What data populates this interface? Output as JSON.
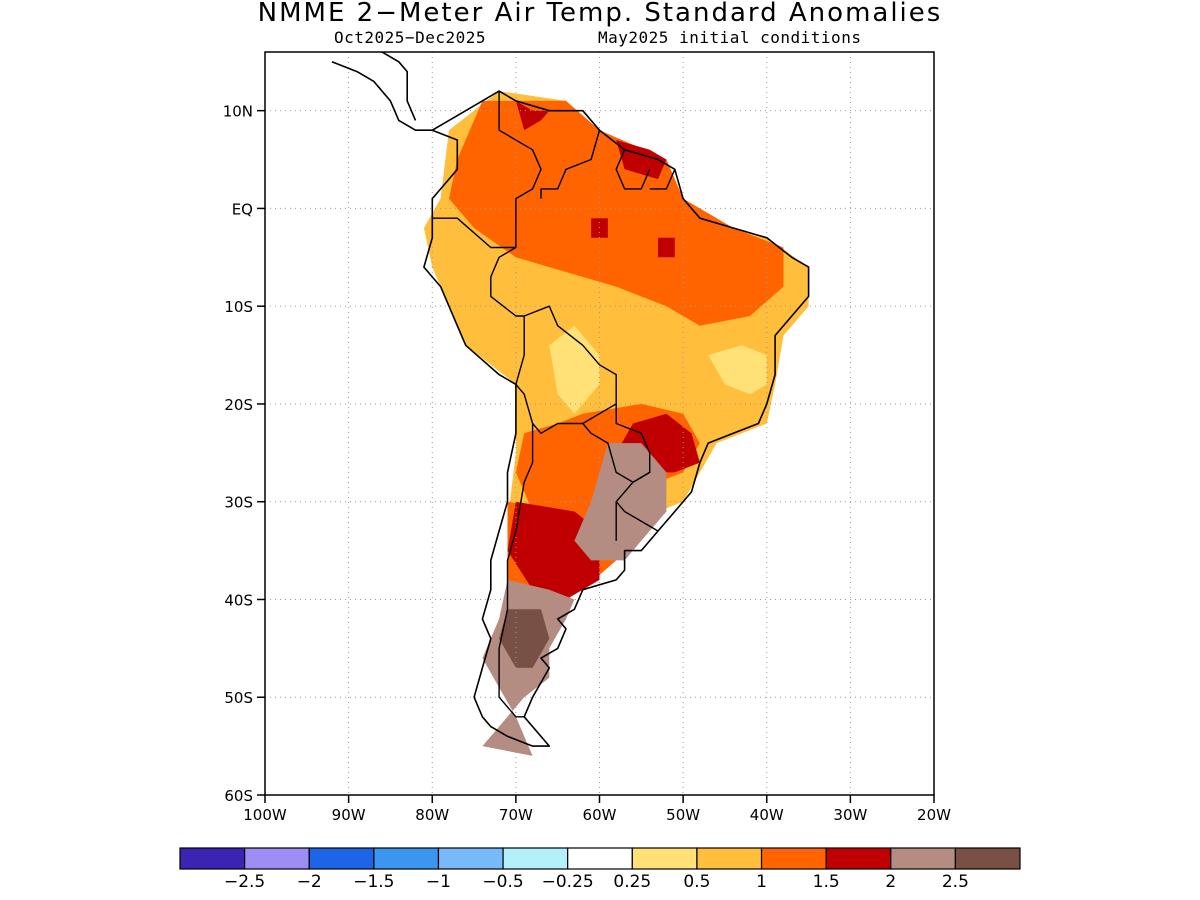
{
  "title": "NMME 2−Meter Air Temp. Standard Anomalies",
  "subtitle_left": "Oct2025−Dec2025",
  "subtitle_right": "May2025 initial conditions",
  "lat_ticks": [
    {
      "value": 10,
      "label": "10N"
    },
    {
      "value": 0,
      "label": "EQ"
    },
    {
      "value": -10,
      "label": "10S"
    },
    {
      "value": -20,
      "label": "20S"
    },
    {
      "value": -30,
      "label": "30S"
    },
    {
      "value": -40,
      "label": "40S"
    },
    {
      "value": -50,
      "label": "50S"
    },
    {
      "value": -60,
      "label": "60S"
    }
  ],
  "lon_ticks": [
    {
      "value": -100,
      "label": "100W"
    },
    {
      "value": -90,
      "label": "90W"
    },
    {
      "value": -80,
      "label": "80W"
    },
    {
      "value": -70,
      "label": "70W"
    },
    {
      "value": -60,
      "label": "60W"
    },
    {
      "value": -50,
      "label": "50W"
    },
    {
      "value": -40,
      "label": "40W"
    },
    {
      "value": -30,
      "label": "30W"
    },
    {
      "value": -20,
      "label": "20W"
    }
  ],
  "map_extent": {
    "lon": [
      -100,
      -20
    ],
    "lat": [
      -60,
      16
    ]
  },
  "colorbar": {
    "colors": [
      "#3b24b4",
      "#9e8df5",
      "#1e64e6",
      "#3c96f0",
      "#78b9fa",
      "#b4f0fa",
      "#ffffff",
      "#ffe178",
      "#ffbe3c",
      "#ff6400",
      "#c00000",
      "#b48c82",
      "#785046"
    ],
    "labels": [
      "−2.5",
      "−2",
      "−1.5",
      "−1",
      "−0.5",
      "−0.25",
      "0.25",
      "0.5",
      "1",
      "1.5",
      "2",
      "2.5"
    ]
  },
  "anomaly_regions": [
    {
      "level": 1,
      "points": [
        [
          -78,
          8
        ],
        [
          -72,
          12
        ],
        [
          -64,
          11
        ],
        [
          -60,
          8
        ],
        [
          -52,
          5
        ],
        [
          -50,
          1
        ],
        [
          -44,
          -2
        ],
        [
          -40,
          -3
        ],
        [
          -35,
          -6
        ],
        [
          -35,
          -10
        ],
        [
          -38,
          -13
        ],
        [
          -39,
          -18
        ],
        [
          -40,
          -22
        ],
        [
          -46,
          -24
        ],
        [
          -48,
          -27
        ],
        [
          -50,
          -30
        ],
        [
          -56,
          -32
        ],
        [
          -60,
          -35
        ],
        [
          -62,
          -38
        ],
        [
          -64,
          -40
        ],
        [
          -66,
          -43
        ],
        [
          -71,
          -43
        ],
        [
          -71,
          -38
        ],
        [
          -71,
          -32
        ],
        [
          -70,
          -25
        ],
        [
          -70,
          -18
        ],
        [
          -76,
          -14
        ],
        [
          -80,
          -6
        ],
        [
          -81,
          -2
        ],
        [
          -79,
          1
        ]
      ]
    },
    {
      "level": 0,
      "points": [
        [
          -66,
          -14
        ],
        [
          -63,
          -12
        ],
        [
          -60,
          -15
        ],
        [
          -60,
          -18
        ],
        [
          -63,
          -21
        ],
        [
          -65,
          -19
        ]
      ]
    },
    {
      "level": 0,
      "points": [
        [
          -47,
          -15
        ],
        [
          -43,
          -14
        ],
        [
          -40,
          -15
        ],
        [
          -40,
          -18
        ],
        [
          -42,
          -19
        ],
        [
          -45,
          -18
        ]
      ]
    },
    {
      "level": 2,
      "points": [
        [
          -77,
          5
        ],
        [
          -74,
          11
        ],
        [
          -64,
          11
        ],
        [
          -60,
          8
        ],
        [
          -52,
          5
        ],
        [
          -50,
          1
        ],
        [
          -44,
          -2
        ],
        [
          -38,
          -4
        ],
        [
          -38,
          -8
        ],
        [
          -42,
          -11
        ],
        [
          -48,
          -12
        ],
        [
          -52,
          -10
        ],
        [
          -58,
          -8
        ],
        [
          -62,
          -7
        ],
        [
          -66,
          -6
        ],
        [
          -70,
          -5
        ],
        [
          -75,
          -2
        ],
        [
          -78,
          1
        ]
      ]
    },
    {
      "level": 3,
      "points": [
        [
          -70,
          11
        ],
        [
          -68,
          10
        ],
        [
          -66,
          10
        ],
        [
          -67,
          9
        ],
        [
          -69,
          8
        ]
      ]
    },
    {
      "level": 3,
      "points": [
        [
          -58,
          7
        ],
        [
          -54,
          6
        ],
        [
          -52,
          5
        ],
        [
          -53,
          3
        ],
        [
          -57,
          4
        ]
      ]
    },
    {
      "level": 3,
      "points": [
        [
          -61,
          -1
        ],
        [
          -59,
          -1
        ],
        [
          -59,
          -3
        ],
        [
          -61,
          -3
        ]
      ]
    },
    {
      "level": 3,
      "points": [
        [
          -53,
          -3
        ],
        [
          -51,
          -3
        ],
        [
          -51,
          -5
        ],
        [
          -53,
          -5
        ]
      ]
    },
    {
      "level": 2,
      "points": [
        [
          -62,
          -21
        ],
        [
          -55,
          -20
        ],
        [
          -50,
          -21
        ],
        [
          -48,
          -24
        ],
        [
          -50,
          -27
        ],
        [
          -53,
          -28
        ],
        [
          -58,
          -30
        ],
        [
          -63,
          -32
        ],
        [
          -66,
          -33
        ],
        [
          -68,
          -31
        ],
        [
          -70,
          -27
        ],
        [
          -69,
          -23
        ],
        [
          -65,
          -22
        ]
      ]
    },
    {
      "level": 2,
      "points": [
        [
          -71,
          -30
        ],
        [
          -65,
          -31
        ],
        [
          -58,
          -32
        ],
        [
          -58,
          -36
        ],
        [
          -62,
          -39
        ],
        [
          -66,
          -40
        ],
        [
          -71,
          -40
        ]
      ]
    },
    {
      "level": 3,
      "points": [
        [
          -56,
          -22
        ],
        [
          -52,
          -21
        ],
        [
          -49,
          -23
        ],
        [
          -48,
          -26
        ],
        [
          -51,
          -27
        ],
        [
          -55,
          -27
        ],
        [
          -58,
          -25
        ]
      ]
    },
    {
      "level": 3,
      "points": [
        [
          -70,
          -30
        ],
        [
          -63,
          -31
        ],
        [
          -60,
          -33
        ],
        [
          -60,
          -38
        ],
        [
          -64,
          -40
        ],
        [
          -68,
          -39
        ],
        [
          -71,
          -35
        ]
      ]
    },
    {
      "level": 4,
      "points": [
        [
          -59,
          -24
        ],
        [
          -55,
          -24
        ],
        [
          -52,
          -27
        ],
        [
          -52,
          -31
        ],
        [
          -55,
          -34
        ],
        [
          -57,
          -36
        ],
        [
          -61,
          -36
        ],
        [
          -63,
          -34
        ],
        [
          -61,
          -30
        ],
        [
          -60,
          -27
        ]
      ]
    },
    {
      "level": 4,
      "points": [
        [
          -71,
          -38
        ],
        [
          -66,
          -39
        ],
        [
          -63,
          -40
        ],
        [
          -64,
          -42
        ],
        [
          -66,
          -45
        ],
        [
          -66,
          -48
        ],
        [
          -69,
          -50
        ],
        [
          -72,
          -53
        ],
        [
          -74,
          -55
        ],
        [
          -68,
          -56
        ],
        [
          -70,
          -52
        ],
        [
          -72,
          -49
        ],
        [
          -74,
          -46
        ],
        [
          -72,
          -42
        ]
      ]
    },
    {
      "level": 5,
      "points": [
        [
          -71,
          -41
        ],
        [
          -67,
          -41
        ],
        [
          -66,
          -44
        ],
        [
          -68,
          -47
        ],
        [
          -70,
          -47
        ],
        [
          -72,
          -44
        ]
      ]
    }
  ],
  "coastlines": [
    [
      [
        -80,
        8
      ],
      [
        -78,
        9
      ],
      [
        -76,
        10
      ],
      [
        -72,
        12
      ],
      [
        -70,
        11
      ],
      [
        -66,
        10
      ],
      [
        -62,
        10
      ],
      [
        -60,
        8
      ],
      [
        -57,
        6
      ],
      [
        -53,
        5
      ],
      [
        -51,
        4
      ],
      [
        -50,
        1
      ],
      [
        -48,
        -1
      ],
      [
        -44,
        -2
      ],
      [
        -40,
        -3
      ],
      [
        -37,
        -5
      ],
      [
        -35,
        -6
      ],
      [
        -35,
        -9
      ],
      [
        -37,
        -11
      ],
      [
        -39,
        -13
      ],
      [
        -39,
        -17
      ],
      [
        -40,
        -20
      ],
      [
        -41,
        -22
      ],
      [
        -44,
        -23
      ],
      [
        -47,
        -24
      ],
      [
        -48,
        -26
      ],
      [
        -49,
        -29
      ],
      [
        -51,
        -31
      ],
      [
        -53,
        -33
      ],
      [
        -55,
        -35
      ],
      [
        -57,
        -35
      ],
      [
        -57,
        -37
      ],
      [
        -58,
        -38
      ],
      [
        -62,
        -39
      ],
      [
        -63,
        -41
      ],
      [
        -65,
        -42
      ],
      [
        -64,
        -43
      ],
      [
        -65,
        -45
      ],
      [
        -67,
        -46
      ],
      [
        -66,
        -47
      ],
      [
        -68,
        -50
      ],
      [
        -69,
        -52
      ],
      [
        -68,
        -53
      ],
      [
        -66,
        -55
      ],
      [
        -68,
        -55
      ],
      [
        -71,
        -54
      ],
      [
        -73,
        -53
      ],
      [
        -74,
        -52
      ],
      [
        -75,
        -50
      ],
      [
        -74,
        -47
      ],
      [
        -73,
        -44
      ],
      [
        -74,
        -42
      ],
      [
        -73,
        -39
      ],
      [
        -73,
        -36
      ],
      [
        -72,
        -33
      ],
      [
        -71,
        -30
      ],
      [
        -71,
        -27
      ],
      [
        -70,
        -23
      ],
      [
        -70,
        -18
      ],
      [
        -72,
        -17
      ],
      [
        -76,
        -14
      ],
      [
        -77,
        -12
      ],
      [
        -79,
        -8
      ],
      [
        -81,
        -6
      ],
      [
        -80,
        -3
      ],
      [
        -80,
        -1
      ],
      [
        -80,
        1
      ],
      [
        -78,
        3
      ],
      [
        -77,
        4
      ],
      [
        -77,
        7
      ],
      [
        -80,
        8
      ]
    ],
    [
      [
        -92,
        15
      ],
      [
        -89,
        14
      ],
      [
        -87,
        13
      ],
      [
        -85,
        11
      ],
      [
        -84,
        9
      ],
      [
        -82,
        8
      ],
      [
        -80,
        8
      ]
    ],
    [
      [
        -86,
        16
      ],
      [
        -84,
        15
      ],
      [
        -83,
        14
      ],
      [
        -83,
        11
      ],
      [
        -82,
        9
      ]
    ]
  ],
  "borders": [
    [
      [
        -72,
        12
      ],
      [
        -72,
        8
      ],
      [
        -68,
        6
      ],
      [
        -67,
        4
      ],
      [
        -68,
        2
      ],
      [
        -70,
        1
      ],
      [
        -70,
        -1
      ],
      [
        -70,
        -4
      ],
      [
        -73,
        -4
      ],
      [
        -77,
        -1
      ],
      [
        -80,
        -1
      ]
    ],
    [
      [
        -60,
        8
      ],
      [
        -61,
        5
      ],
      [
        -64,
        4
      ],
      [
        -65,
        2
      ],
      [
        -67,
        2
      ],
      [
        -67,
        1
      ]
    ],
    [
      [
        -57,
        6
      ],
      [
        -58,
        4
      ],
      [
        -57,
        2
      ],
      [
        -55,
        2
      ],
      [
        -54,
        4
      ]
    ],
    [
      [
        -51,
        4
      ],
      [
        -52,
        2
      ],
      [
        -54,
        2
      ]
    ],
    [
      [
        -70,
        -4
      ],
      [
        -72,
        -5
      ],
      [
        -73,
        -7
      ],
      [
        -73,
        -9
      ],
      [
        -70,
        -11
      ],
      [
        -69,
        -11
      ],
      [
        -69,
        -15
      ],
      [
        -70,
        -18
      ]
    ],
    [
      [
        -69,
        -11
      ],
      [
        -66,
        -10
      ],
      [
        -65,
        -12
      ],
      [
        -62,
        -14
      ],
      [
        -60,
        -16
      ],
      [
        -58,
        -17
      ],
      [
        -58,
        -20
      ],
      [
        -60,
        -21
      ],
      [
        -62,
        -22
      ],
      [
        -65,
        -22
      ],
      [
        -67,
        -23
      ],
      [
        -68,
        -22
      ],
      [
        -69,
        -19
      ],
      [
        -70,
        -18
      ]
    ],
    [
      [
        -58,
        -20
      ],
      [
        -58,
        -22
      ],
      [
        -55,
        -23
      ],
      [
        -54,
        -25
      ],
      [
        -54,
        -27
      ],
      [
        -56,
        -28
      ],
      [
        -58,
        -27
      ],
      [
        -59,
        -24
      ],
      [
        -61,
        -23
      ],
      [
        -62,
        -22
      ]
    ],
    [
      [
        -68,
        -22
      ],
      [
        -68,
        -26
      ],
      [
        -69,
        -28
      ],
      [
        -70,
        -33
      ],
      [
        -71,
        -36
      ],
      [
        -71,
        -41
      ],
      [
        -72,
        -45
      ],
      [
        -72,
        -50
      ],
      [
        -70,
        -52
      ],
      [
        -69,
        -52
      ]
    ],
    [
      [
        -54,
        -27
      ],
      [
        -56,
        -28
      ],
      [
        -58,
        -30
      ],
      [
        -57,
        -31
      ],
      [
        -53,
        -33
      ]
    ],
    [
      [
        -58,
        -30
      ],
      [
        -58,
        -34
      ]
    ]
  ]
}
